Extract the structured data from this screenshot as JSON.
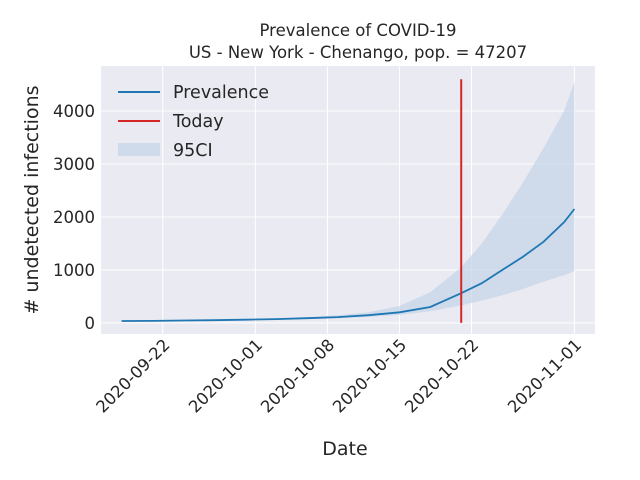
{
  "chart_data": {
    "type": "line",
    "title_line1": "Prevalence of COVID-19",
    "title_line2": "US - New York - Chenango, pop. = 47207",
    "xlabel": "Date",
    "ylabel": "# undetected infections",
    "x_ticks": [
      "2020-09-22",
      "2020-10-01",
      "2020-10-08",
      "2020-10-15",
      "2020-10-22",
      "2020-11-01"
    ],
    "y_ticks": [
      0,
      1000,
      2000,
      3000,
      4000
    ],
    "ylim": [
      -210,
      4850
    ],
    "xlim": [
      "2020-09-16",
      "2020-11-03"
    ],
    "grid": true,
    "legend_position": "top-left",
    "legend": [
      "Prevalence",
      "Today",
      "95CI"
    ],
    "colors": {
      "prevalence": "#1f77b4",
      "today": "#d62728",
      "ci": "#c5d5e8",
      "plot_bg": "#eaeaf2",
      "grid": "#ffffff"
    },
    "today": {
      "x": "2020-10-21",
      "y_range": [
        0,
        4600
      ]
    },
    "series": [
      {
        "name": "Prevalence",
        "x": [
          "2020-09-18",
          "2020-09-21",
          "2020-09-24",
          "2020-09-27",
          "2020-09-30",
          "2020-10-03",
          "2020-10-06",
          "2020-10-09",
          "2020-10-12",
          "2020-10-15",
          "2020-10-18",
          "2020-10-21",
          "2020-10-23",
          "2020-10-25",
          "2020-10-27",
          "2020-10-29",
          "2020-10-31",
          "2020-11-01"
        ],
        "y": [
          35,
          38,
          44,
          50,
          60,
          72,
          88,
          110,
          145,
          200,
          300,
          560,
          750,
          1000,
          1250,
          1530,
          1900,
          2150
        ]
      }
    ],
    "ci": {
      "x": [
        "2020-09-18",
        "2020-09-21",
        "2020-09-24",
        "2020-09-27",
        "2020-09-30",
        "2020-10-03",
        "2020-10-06",
        "2020-10-09",
        "2020-10-12",
        "2020-10-15",
        "2020-10-18",
        "2020-10-21",
        "2020-10-23",
        "2020-10-25",
        "2020-10-27",
        "2020-10-29",
        "2020-10-31",
        "2020-11-01"
      ],
      "lower": [
        30,
        33,
        38,
        43,
        51,
        60,
        72,
        88,
        112,
        150,
        220,
        330,
        420,
        520,
        640,
        780,
        900,
        980
      ],
      "upper": [
        40,
        44,
        52,
        60,
        72,
        88,
        110,
        145,
        200,
        320,
        580,
        1050,
        1500,
        2050,
        2650,
        3300,
        4000,
        4550
      ]
    }
  }
}
